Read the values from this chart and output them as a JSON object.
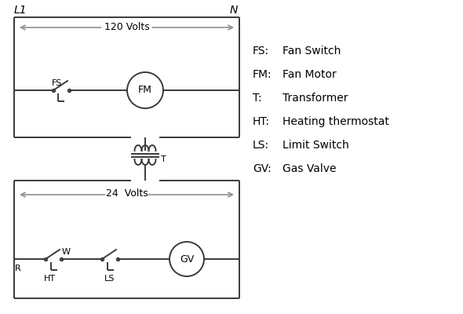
{
  "background": "#ffffff",
  "line_color": "#3a3a3a",
  "text_color": "#000000",
  "gray_arrow_color": "#909090",
  "legend_items": [
    [
      "FS:",
      "Fan Switch"
    ],
    [
      "FM:",
      "Fan Motor"
    ],
    [
      "T:",
      "Transformer"
    ],
    [
      "HT:",
      "Heating thermostat"
    ],
    [
      "LS:",
      "Limit Switch"
    ],
    [
      "GV:",
      "Gas Valve"
    ]
  ],
  "L1_label": "L1",
  "N_label": "N",
  "volts120_label": "120 Volts",
  "volts24_label": "24  Volts",
  "T_label": "T",
  "R_label": "R",
  "W_label": "W",
  "FS_label": "FS",
  "HT_label": "HT",
  "LS_label": "LS"
}
